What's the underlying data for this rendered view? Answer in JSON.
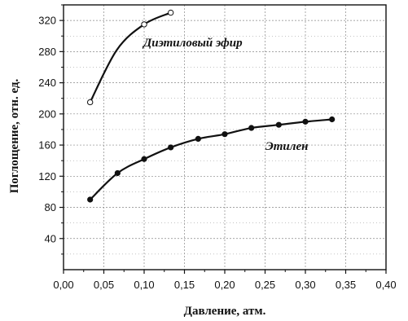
{
  "chart_data": {
    "type": "scatter",
    "title": "",
    "xlabel": "Давление, атм.",
    "ylabel": "Поглощение, отн. ед.",
    "xlim": [
      0.0,
      0.4
    ],
    "ylim": [
      0,
      340
    ],
    "x_ticks": [
      "0,00",
      "0,05",
      "0,10",
      "0,15",
      "0,20",
      "0,25",
      "0,30",
      "0,35",
      "0,40"
    ],
    "y_ticks": [
      "40",
      "80",
      "120",
      "160",
      "200",
      "240",
      "280",
      "320"
    ],
    "grid": true,
    "series": [
      {
        "name": "Диэтиловый эфир",
        "marker": "open-circle",
        "x": [
          0.033,
          0.1,
          0.133
        ],
        "y": [
          215,
          315,
          330
        ]
      },
      {
        "name": "Этилен",
        "marker": "filled-circle",
        "x": [
          0.033,
          0.067,
          0.1,
          0.133,
          0.167,
          0.2,
          0.233,
          0.267,
          0.3,
          0.333
        ],
        "y": [
          90,
          124,
          142,
          157,
          168,
          174,
          182,
          186,
          190,
          193
        ]
      }
    ]
  },
  "colors": {
    "line": "#111111",
    "grid": "#888888",
    "background": "#ffffff"
  }
}
